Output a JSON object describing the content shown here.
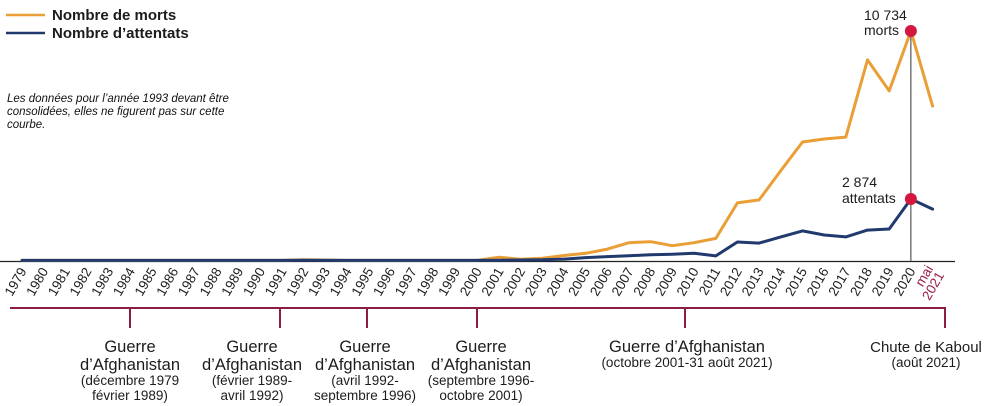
{
  "chart_data": {
    "type": "line",
    "title": "",
    "xlabel": "",
    "ylabel": "",
    "grid": false,
    "legend_position": "top-left",
    "ylim": [
      0,
      11000
    ],
    "categories": [
      "1979",
      "1980",
      "1981",
      "1982",
      "1983",
      "1984",
      "1985",
      "1986",
      "1987",
      "1988",
      "1989",
      "1990",
      "1991",
      "1992",
      "1993",
      "1994",
      "1995",
      "1996",
      "1997",
      "1998",
      "1999",
      "2000",
      "2001",
      "2002",
      "2003",
      "2004",
      "2005",
      "2006",
      "2007",
      "2008",
      "2009",
      "2010",
      "2011",
      "2012",
      "2013",
      "2014",
      "2015",
      "2016",
      "2017",
      "2018",
      "2019",
      "2020",
      "mai 2021"
    ],
    "highlight_category": "mai 2021",
    "highlight_category_color": "#9B1C4B",
    "series": [
      {
        "name": "Nombre de morts",
        "color": "#EA9E36",
        "values": [
          0,
          0,
          0,
          0,
          0,
          0,
          0,
          0,
          0,
          0,
          0,
          0,
          0,
          30,
          null,
          0,
          0,
          0,
          0,
          0,
          0,
          0,
          150,
          50,
          100,
          230,
          330,
          530,
          830,
          875,
          690,
          830,
          1030,
          2690,
          2830,
          4200,
          5540,
          5680,
          5770,
          9380,
          7930,
          10734,
          7220
        ]
      },
      {
        "name": "Nombre d’attentats",
        "color": "#213A6E",
        "values": [
          0,
          0,
          0,
          0,
          0,
          0,
          0,
          0,
          0,
          0,
          0,
          0,
          0,
          10,
          null,
          0,
          0,
          0,
          0,
          0,
          0,
          0,
          10,
          20,
          30,
          60,
          130,
          180,
          220,
          260,
          290,
          330,
          210,
          860,
          810,
          1100,
          1380,
          1190,
          1100,
          1420,
          1470,
          2874,
          2400
        ]
      }
    ],
    "highlights": [
      {
        "category": "2020",
        "series_index": 0,
        "value_text": "10 734",
        "unit_text": "morts",
        "color": "#D5173D"
      },
      {
        "category": "2020",
        "series_index": 1,
        "value_text": "2 874",
        "unit_text": "attentats",
        "color": "#D5173D"
      }
    ],
    "note": [
      "Les données pour l’année 1993 devant être",
      "consolidées, elles ne figurent pas sur cette",
      "courbe."
    ],
    "periods_color": "#8B1E3F",
    "periods": [
      {
        "title_lines": [
          "Guerre",
          "d’Afghanistan"
        ],
        "date_lines": [
          "(décembre 1979",
          "février 1989)"
        ]
      },
      {
        "title_lines": [
          "Guerre",
          "d’Afghanistan"
        ],
        "date_lines": [
          "(février 1989-",
          "avril 1992)"
        ]
      },
      {
        "title_lines": [
          "Guerre",
          "d’Afghanistan"
        ],
        "date_lines": [
          "(avril 1992-",
          "septembre 1996)"
        ]
      },
      {
        "title_lines": [
          "Guerre",
          "d’Afghanistan"
        ],
        "date_lines": [
          "(septembre 1996-",
          "octobre 2001)"
        ]
      },
      {
        "title_lines": [
          "Guerre d’Afghanistan"
        ],
        "date_lines": [
          "(octobre 2001-31 août 2021)"
        ]
      },
      {
        "title_lines": [
          "Chute de Kaboul"
        ],
        "date_lines": [
          "(août 2021)"
        ]
      }
    ]
  }
}
